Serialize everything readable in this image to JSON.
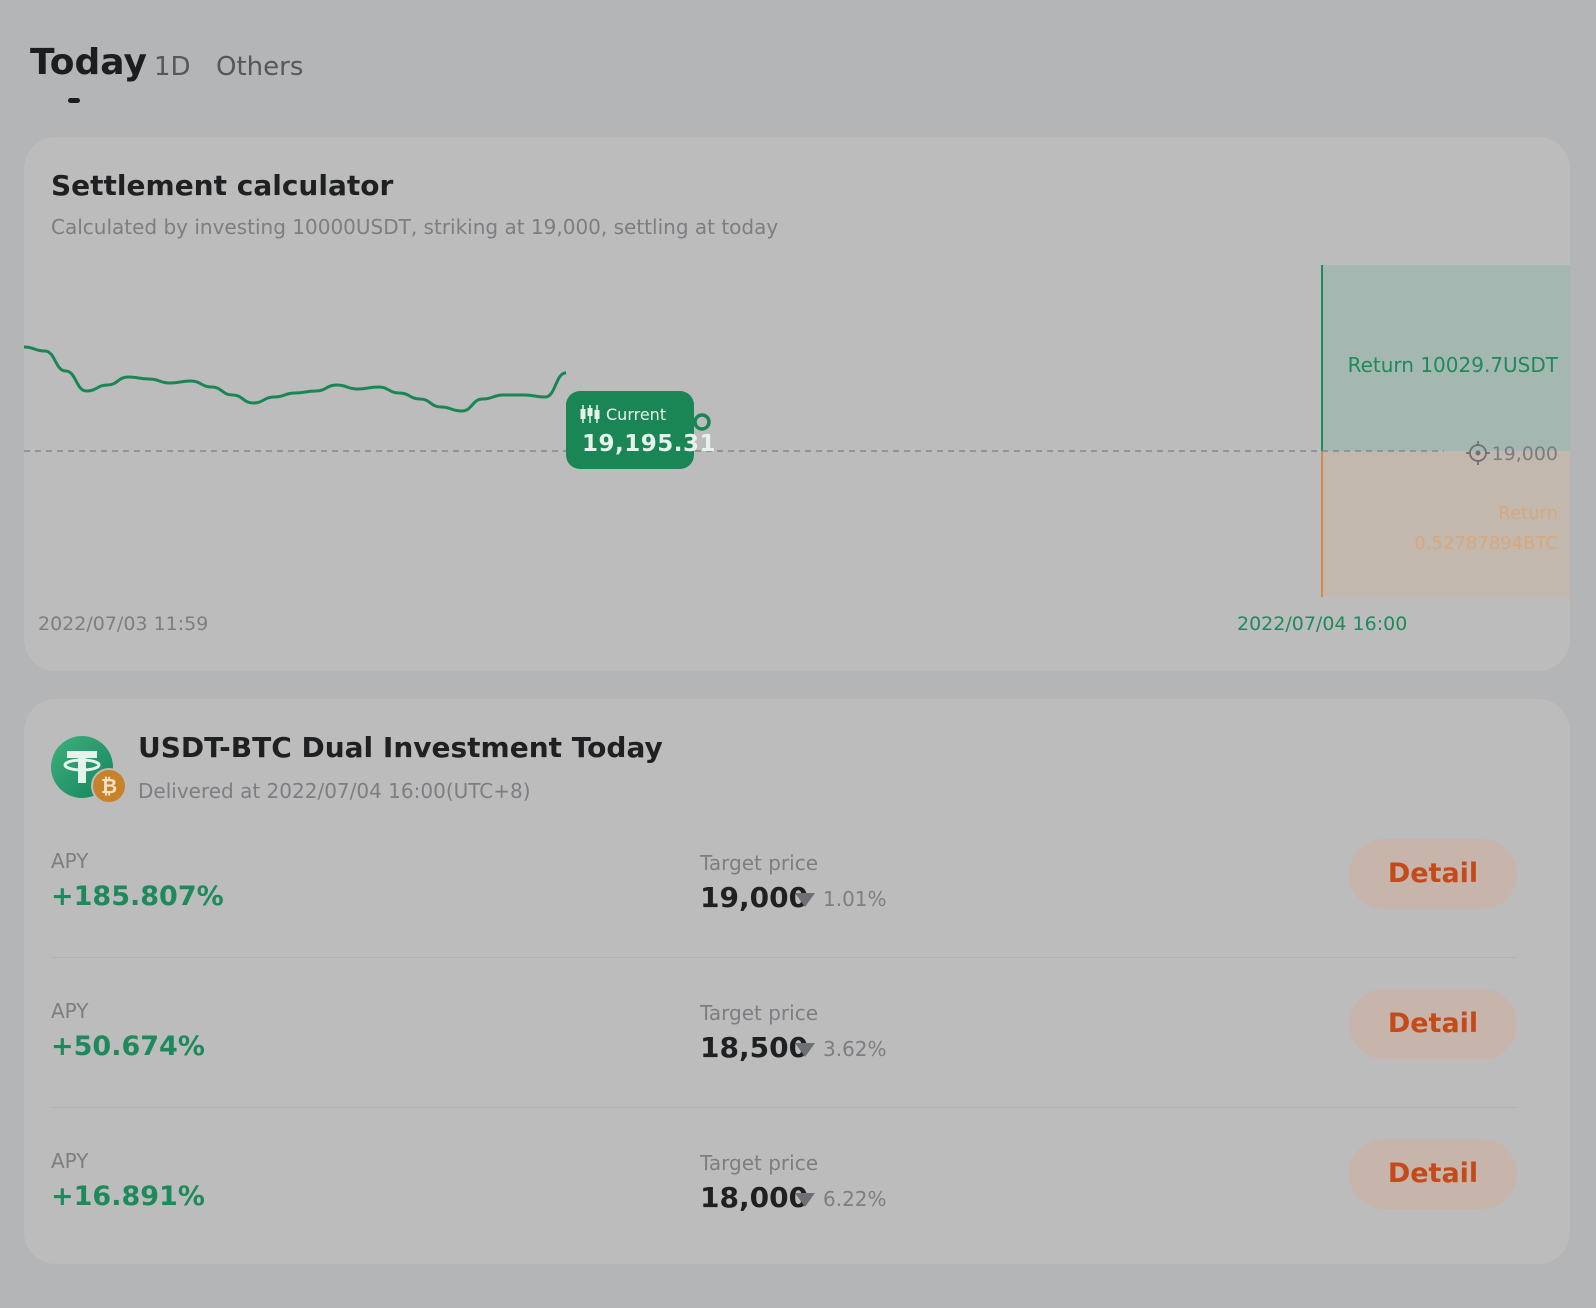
{
  "tabs": [
    {
      "label": "Today",
      "active": true
    },
    {
      "label": "1D",
      "active": false
    },
    {
      "label": "Others",
      "active": false
    }
  ],
  "calculator": {
    "title": "Settlement calculator",
    "subtitle": "Calculated by investing 10000USDT, striking at 19,000, settling at today",
    "current_label": "Current",
    "current_value": "19,195.31",
    "return_up": "Return 10029.7USDT",
    "strike_label": "19,000",
    "return_down_line1": "Return",
    "return_down_line2": "0.52787894BTC",
    "date_start": "2022/07/03 11:59",
    "date_end": "2022/07/04 16:00",
    "colors": {
      "up": "#1e8a5c",
      "down": "#d08a4c"
    }
  },
  "chart_data": {
    "type": "line",
    "series": [
      {
        "values": [
          19260,
          19250,
          19200,
          19150,
          19165,
          19185,
          19180,
          19170,
          19175,
          19160,
          19140,
          19120,
          19135,
          19145,
          19150,
          19165,
          19155,
          19160,
          19145,
          19130,
          19110,
          19100,
          19130,
          19140,
          19140,
          19135,
          19195.31
        ]
      }
    ],
    "strike": 19000,
    "current": 19195.31
  },
  "product": {
    "title": "USDT-BTC Dual Investment Today",
    "subtitle": "Delivered at 2022/07/04 16:00(UTC+8)",
    "icons": [
      "tether-icon",
      "bitcoin-icon"
    ],
    "rows": [
      {
        "apy_label": "APY",
        "apy": "+185.807%",
        "target_label": "Target price",
        "target": "19,000",
        "pct": "1.01%",
        "button": "Detail"
      },
      {
        "apy_label": "APY",
        "apy": "+50.674%",
        "target_label": "Target price",
        "target": "18,500",
        "pct": "3.62%",
        "button": "Detail"
      },
      {
        "apy_label": "APY",
        "apy": "+16.891%",
        "target_label": "Target price",
        "target": "18,000",
        "pct": "6.22%",
        "button": "Detail"
      }
    ]
  }
}
